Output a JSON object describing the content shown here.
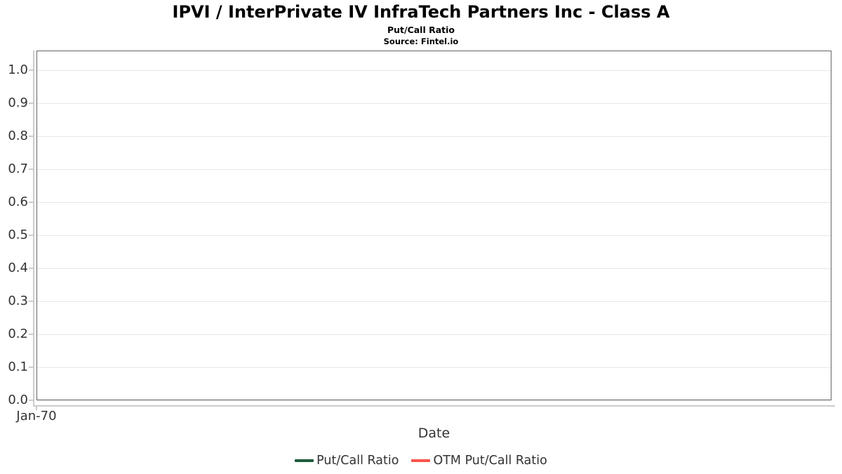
{
  "chart_data": {
    "type": "line",
    "title": "IPVI / InterPrivate IV InfraTech Partners Inc - Class A",
    "subtitle": "Put/Call Ratio",
    "source": "Source: Fintel.io",
    "xlabel": "Date",
    "ylabel": "",
    "ylim": [
      0,
      1.06
    ],
    "y_ticks": [
      "0.0",
      "0.1",
      "0.2",
      "0.3",
      "0.4",
      "0.5",
      "0.6",
      "0.7",
      "0.8",
      "0.9",
      "1.0"
    ],
    "x_ticks": [
      "Jan-70"
    ],
    "grid": true,
    "legend_position": "bottom",
    "series": [
      {
        "name": "Put/Call Ratio",
        "color": "#1e5c3b",
        "x": [],
        "values": []
      },
      {
        "name": "OTM Put/Call Ratio",
        "color": "#f9534c",
        "x": [],
        "values": []
      }
    ],
    "colors": {
      "plot_border": "#666666",
      "gridline": "#e6e6e6",
      "axis_line": "#cccccc",
      "tick_label": "#333333",
      "title_text": "#000000"
    }
  }
}
